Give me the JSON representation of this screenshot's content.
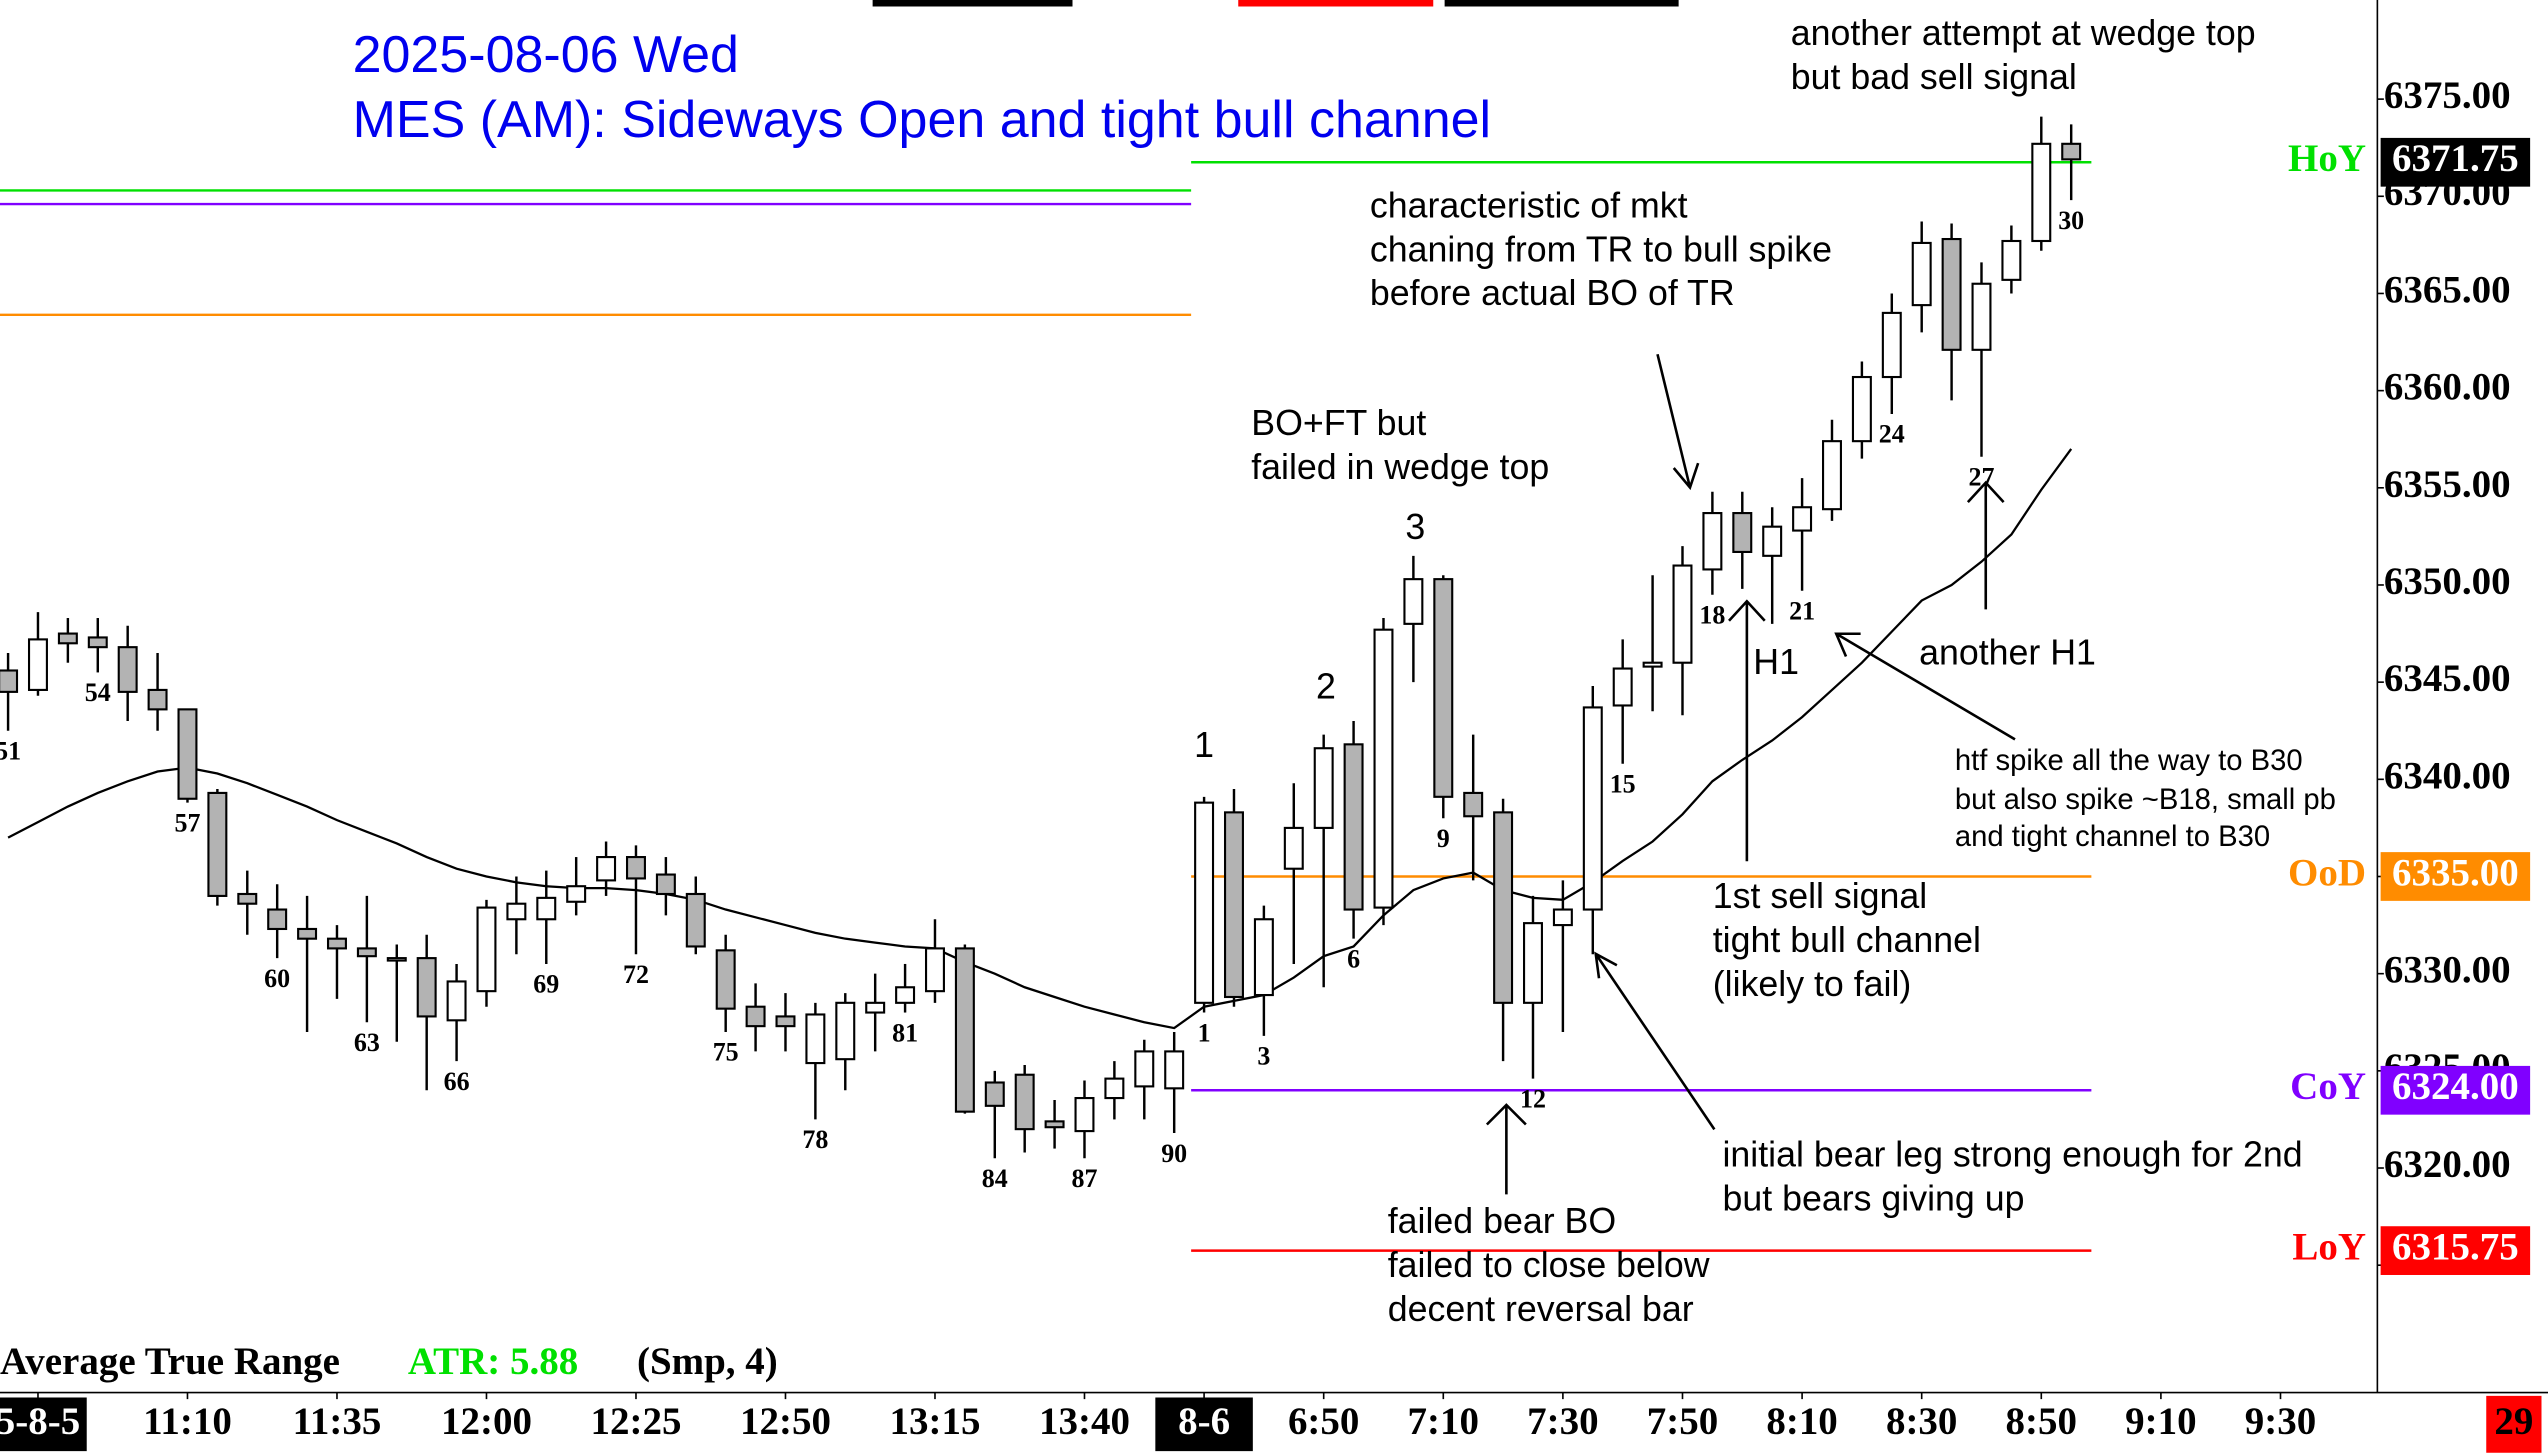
{
  "chart_data": {
    "type": "candlestick",
    "title": "2025-08-06 Wed",
    "subtitle": "MES (AM): Sideways Open and tight bull channel",
    "categories": [
      "51",
      null,
      null,
      "54",
      null,
      null,
      "57",
      null,
      null,
      "60",
      null,
      null,
      "63",
      null,
      null,
      "66",
      null,
      null,
      "69",
      null,
      null,
      "72",
      null,
      null,
      "75",
      null,
      null,
      "78",
      null,
      null,
      "81",
      null,
      null,
      "84",
      null,
      null,
      "87",
      null,
      null,
      "90",
      "1",
      null,
      "3",
      null,
      null,
      "6",
      null,
      null,
      "9",
      null,
      null,
      "12",
      null,
      null,
      "15",
      null,
      null,
      "18",
      null,
      null,
      "21",
      null,
      null,
      "24",
      null,
      null,
      "27",
      null,
      null,
      "30"
    ],
    "open": [
      6345.6,
      6344.6,
      6347.5,
      6347.3,
      6346.8,
      6344.6,
      6343.6,
      6339.3,
      6334.1,
      6333.3,
      6332.3,
      6331.8,
      6331.3,
      6330.8,
      6330.8,
      6327.6,
      6329.1,
      6332.8,
      6332.8,
      6333.7,
      6334.8,
      6336.0,
      6335.1,
      6334.1,
      6331.2,
      6328.3,
      6327.8,
      6325.4,
      6325.6,
      6328.0,
      6328.5,
      6329.1,
      6331.3,
      6324.4,
      6324.8,
      6322.4,
      6321.9,
      6323.6,
      6324.2,
      6324.1,
      6328.5,
      6338.3,
      6328.9,
      6335.4,
      6337.5,
      6341.8,
      6333.4,
      6348.0,
      6350.3,
      6339.3,
      6338.3,
      6328.5,
      6332.5,
      6333.3,
      6343.8,
      6345.8,
      6346.0,
      6350.8,
      6353.7,
      6351.5,
      6352.8,
      6353.9,
      6357.4,
      6360.7,
      6364.4,
      6367.8,
      6362.1,
      6365.7,
      6367.7,
      6372.7
    ],
    "high": [
      6346.5,
      6348.6,
      6348.3,
      6348.3,
      6347.9,
      6346.5,
      6343.6,
      6339.5,
      6335.3,
      6334.6,
      6334.0,
      6332.5,
      6334.0,
      6331.5,
      6332.0,
      6330.5,
      6333.8,
      6335.0,
      6335.3,
      6336.0,
      6336.8,
      6336.6,
      6336.0,
      6335.0,
      6332.0,
      6329.5,
      6329.0,
      6328.5,
      6329.0,
      6330.0,
      6330.5,
      6332.8,
      6331.5,
      6325.0,
      6325.3,
      6323.5,
      6324.5,
      6325.5,
      6326.6,
      6327.0,
      6339.1,
      6339.5,
      6333.5,
      6339.8,
      6342.3,
      6343.0,
      6348.3,
      6351.5,
      6350.5,
      6342.3,
      6339.0,
      6334.0,
      6334.8,
      6344.8,
      6347.2,
      6350.5,
      6352.0,
      6354.8,
      6354.8,
      6354.0,
      6355.5,
      6358.5,
      6361.5,
      6365.0,
      6368.7,
      6368.6,
      6366.6,
      6368.5,
      6374.1,
      6373.7
    ],
    "low": [
      6342.5,
      6344.3,
      6346.0,
      6345.5,
      6343.0,
      6342.5,
      6338.8,
      6333.5,
      6332.0,
      6330.8,
      6327.0,
      6328.7,
      6327.5,
      6326.5,
      6324.0,
      6325.5,
      6328.3,
      6331.0,
      6330.5,
      6333.0,
      6334.0,
      6331.0,
      6333.0,
      6331.0,
      6327.0,
      6326.0,
      6326.0,
      6322.5,
      6324.0,
      6326.0,
      6328.0,
      6328.5,
      6322.8,
      6320.5,
      6320.8,
      6321.0,
      6320.5,
      6322.5,
      6322.5,
      6321.8,
      6328.0,
      6328.3,
      6326.8,
      6330.5,
      6329.3,
      6331.8,
      6332.5,
      6345.0,
      6338.0,
      6334.8,
      6325.5,
      6324.6,
      6327.0,
      6331.0,
      6340.8,
      6343.5,
      6343.3,
      6349.5,
      6349.8,
      6348.0,
      6349.7,
      6353.3,
      6356.5,
      6358.8,
      6363.0,
      6359.5,
      6356.6,
      6365.0,
      6367.2,
      6369.8
    ],
    "close": [
      6344.5,
      6347.2,
      6347.0,
      6346.8,
      6344.5,
      6343.6,
      6339.0,
      6334.0,
      6333.6,
      6332.3,
      6331.8,
      6331.3,
      6330.9,
      6330.8,
      6327.8,
      6329.6,
      6333.4,
      6333.6,
      6333.9,
      6334.5,
      6336.0,
      6334.9,
      6334.1,
      6331.4,
      6328.2,
      6327.3,
      6327.3,
      6327.9,
      6328.5,
      6328.5,
      6329.3,
      6331.3,
      6322.9,
      6323.2,
      6322.0,
      6322.1,
      6323.6,
      6324.6,
      6326.0,
      6326.0,
      6338.8,
      6328.8,
      6332.8,
      6337.5,
      6341.6,
      6333.3,
      6347.7,
      6350.3,
      6339.1,
      6338.1,
      6328.5,
      6332.6,
      6333.3,
      6343.7,
      6345.7,
      6346.0,
      6351.0,
      6353.7,
      6351.7,
      6353.0,
      6354.0,
      6357.4,
      6360.7,
      6364.0,
      6367.6,
      6362.1,
      6365.5,
      6367.7,
      6372.7,
      6371.9
    ],
    "bull_color": "#ffffff",
    "bear_color": "#b3b3b3",
    "ema": {
      "color": "#000000",
      "values": [
        6337.0,
        6337.8,
        6338.6,
        6339.3,
        6339.9,
        6340.4,
        6340.6,
        6340.3,
        6339.8,
        6339.2,
        6338.6,
        6337.9,
        6337.3,
        6336.7,
        6336.0,
        6335.4,
        6335.0,
        6334.7,
        6334.5,
        6334.4,
        6334.4,
        6334.3,
        6334.1,
        6333.8,
        6333.3,
        6332.9,
        6332.5,
        6332.1,
        6331.8,
        6331.6,
        6331.4,
        6331.3,
        6330.6,
        6330.0,
        6329.3,
        6328.8,
        6328.3,
        6327.9,
        6327.5,
        6327.2,
        6328.3,
        6328.6,
        6328.9,
        6329.8,
        6330.9,
        6331.4,
        6333.0,
        6334.3,
        6334.9,
        6335.2,
        6334.3,
        6333.9,
        6333.8,
        6334.7,
        6335.8,
        6336.8,
        6338.2,
        6339.9,
        6341.0,
        6342.0,
        6343.2,
        6344.6,
        6346.0,
        6347.6,
        6349.2,
        6350.0,
        6351.2,
        6352.6,
        6354.9,
        6357.0
      ]
    },
    "xlim": [
      -0.27,
      79.24
    ],
    "xticks": [
      {
        "value": 1,
        "label": "5-8-5"
      },
      {
        "value": 6,
        "label": "11:10"
      },
      {
        "value": 11,
        "label": "11:35"
      },
      {
        "value": 16,
        "label": "12:00"
      },
      {
        "value": 21,
        "label": "12:25"
      },
      {
        "value": 26,
        "label": "12:50"
      },
      {
        "value": 31,
        "label": "13:15"
      },
      {
        "value": 36,
        "label": "13:40"
      },
      {
        "value": 40,
        "label": "8-6"
      },
      {
        "value": 44,
        "label": "6:50"
      },
      {
        "value": 48,
        "label": "7:10"
      },
      {
        "value": 52,
        "label": "7:30"
      },
      {
        "value": 56,
        "label": "7:50"
      },
      {
        "value": 60,
        "label": "8:10"
      },
      {
        "value": 64,
        "label": "8:30"
      },
      {
        "value": 68,
        "label": "8:50"
      },
      {
        "value": 72,
        "label": "9:10"
      },
      {
        "value": 76,
        "label": "9:30"
      }
    ],
    "ylim": [
      6308.61,
      6380.1
    ],
    "yticks": [
      {
        "value": 6315,
        "label": "6315.00"
      },
      {
        "value": 6320,
        "label": "6320.00"
      },
      {
        "value": 6325,
        "label": "6325.00"
      },
      {
        "value": 6330,
        "label": "6330.00"
      },
      {
        "value": 6335,
        "label": "6335.00"
      },
      {
        "value": 6340,
        "label": "6340.00"
      },
      {
        "value": 6345,
        "label": "6345.00"
      },
      {
        "value": 6350,
        "label": "6350.00"
      },
      {
        "value": 6355,
        "label": "6355.00"
      },
      {
        "value": 6360,
        "label": "6360.00"
      },
      {
        "value": 6365,
        "label": "6365.00"
      },
      {
        "value": 6370,
        "label": "6370.00"
      },
      {
        "value": 6375,
        "label": "6375.00"
      }
    ],
    "levels": [
      {
        "name": "HoY",
        "value": 6371.75,
        "label": "6371.75",
        "color": "#00e000",
        "badge_color": "#000000"
      },
      {
        "name": "OoD",
        "value": 6335.0,
        "label": "6335.00",
        "color": "#ff8c00",
        "badge_color": "#ff8c00"
      },
      {
        "name": "CoY",
        "value": 6324.0,
        "label": "6324.00",
        "color": "#8000ff",
        "badge_color": "#8000ff"
      },
      {
        "name": "LoY",
        "value": 6315.75,
        "label": "6315.75",
        "color": "#ff0000",
        "badge_color": "#ff0000"
      }
    ],
    "prior_levels": [
      {
        "value": 6370.3,
        "color": "#00e000"
      },
      {
        "value": 6369.6,
        "color": "#8000ff"
      },
      {
        "value": 6363.9,
        "color": "#ff8c00"
      }
    ],
    "annotations": [
      {
        "lines": [
          "another attempt at wedge top",
          "but bad sell signal"
        ]
      },
      {
        "lines": [
          "characteristic of mkt",
          "chaning from TR to bull spike",
          "before actual BO of TR"
        ]
      },
      {
        "lines": [
          "BO+FT but",
          "failed in wedge top"
        ]
      },
      {
        "lines": [
          "3"
        ]
      },
      {
        "lines": [
          "2"
        ]
      },
      {
        "lines": [
          "1"
        ]
      },
      {
        "lines": [
          "H1"
        ]
      },
      {
        "lines": [
          "another H1"
        ]
      },
      {
        "lines": [
          "htf spike all the way to B30",
          "but also spike ~B18, small pb",
          "and tight channel to B30"
        ]
      },
      {
        "lines": [
          "1st sell signal",
          "tight bull channel",
          "(likely to fail)"
        ]
      },
      {
        "lines": [
          "initial bear leg strong enough for 2nd",
          "but bears giving up"
        ]
      },
      {
        "lines": [
          "failed bear BO",
          "failed to close below",
          "decent reversal bar"
        ]
      }
    ],
    "indicator": {
      "title": "Average True Range",
      "label": "ATR: 5.88",
      "params": "(Smp, 4)"
    },
    "countdown": 29
  }
}
